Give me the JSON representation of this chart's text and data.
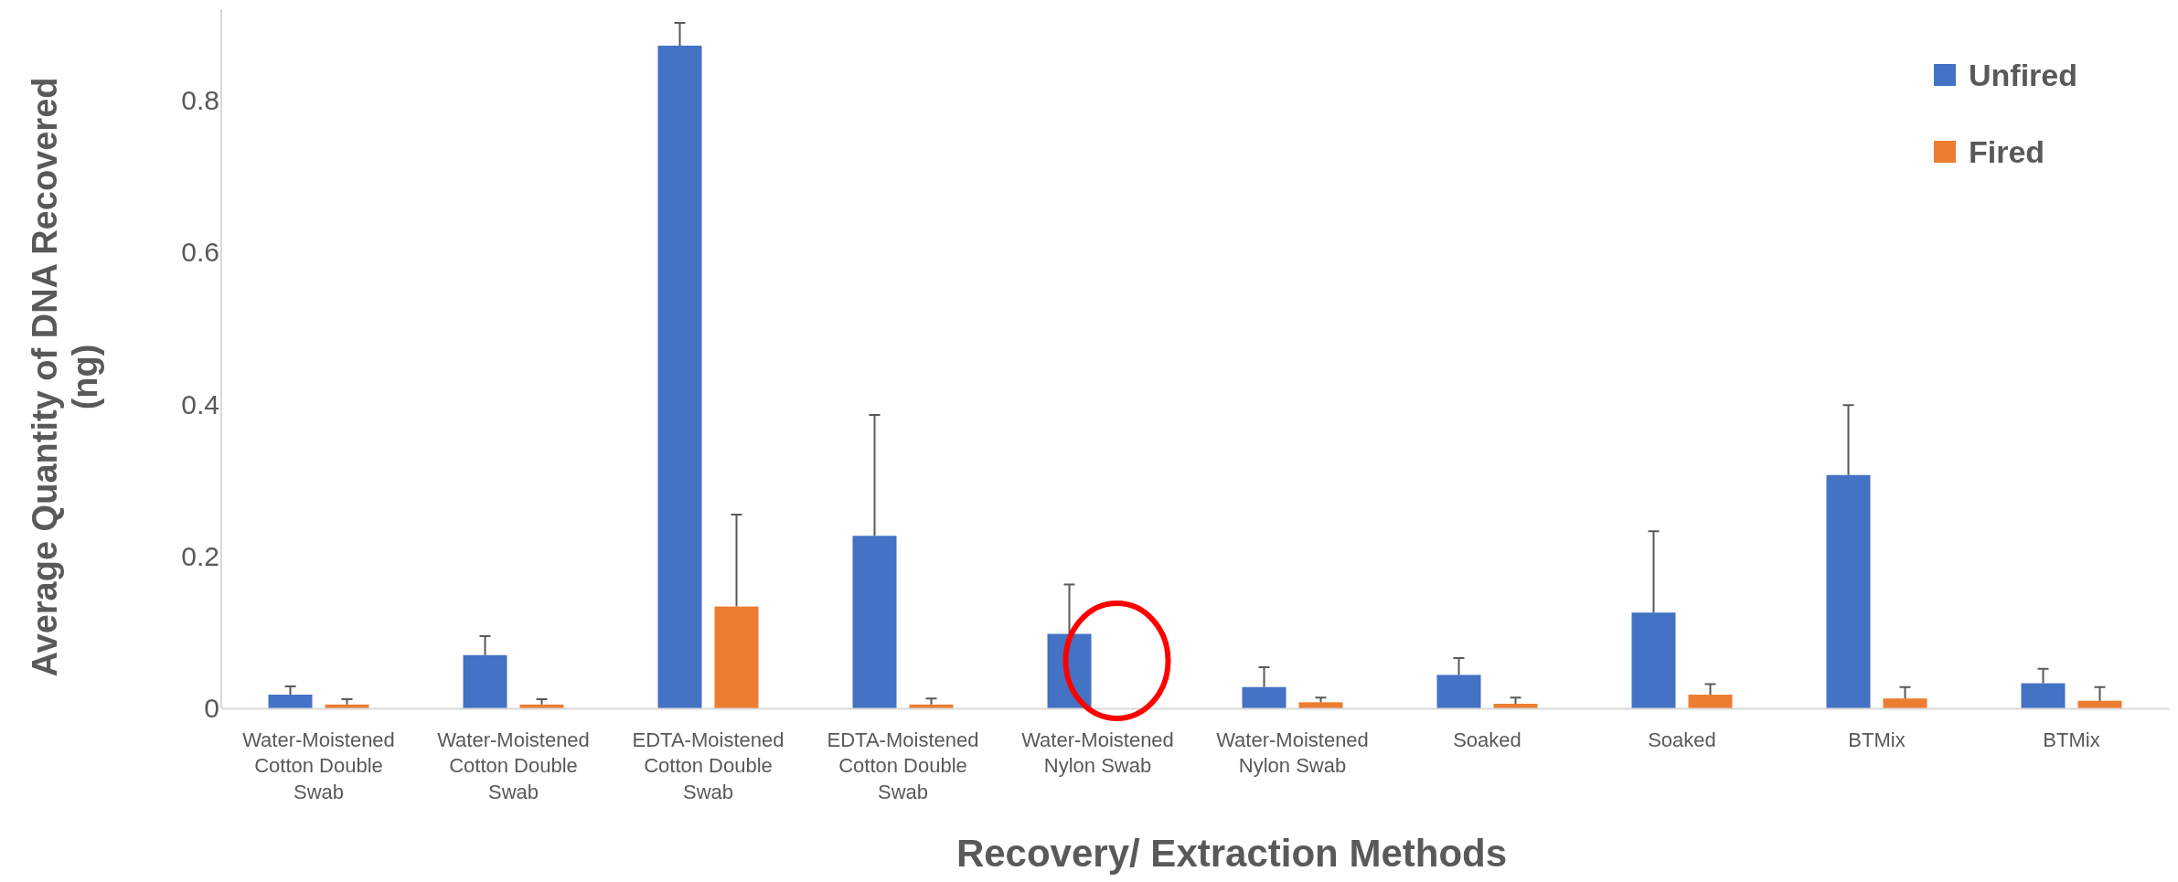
{
  "chart_data": {
    "type": "bar",
    "xlabel": "Recovery/ Extraction Methods",
    "ylabel": "Average Quantity of DNA Recovered (ng)",
    "categories": [
      "Water-Moistened Cotton Double Swab",
      "Water-Moistened Cotton Double Swab",
      "EDTA-Moistened Cotton Double Swab",
      "EDTA-Moistened Cotton Double Swab",
      "Water-Moistened Nylon Swab",
      "Water-Moistened Nylon Swab",
      "Soaked",
      "Soaked",
      "BTMix",
      "BTMix"
    ],
    "series": [
      {
        "name": "Unfired",
        "color": "#4472c4",
        "values": [
          0.018,
          0.07,
          0.872,
          0.227,
          0.098,
          0.028,
          0.044,
          0.126,
          0.307,
          0.033
        ],
        "errors": [
          [
            0.018,
            0.029
          ],
          [
            0.07,
            0.095
          ],
          [
            0.872,
            0.902
          ],
          [
            0.227,
            0.386
          ],
          [
            0.098,
            0.163
          ],
          [
            0.028,
            0.054
          ],
          [
            0.044,
            0.066
          ],
          [
            0.126,
            0.233
          ],
          [
            0.307,
            0.399
          ],
          [
            0.033,
            0.052
          ]
        ]
      },
      {
        "name": "Fired",
        "color": "#ed7d31",
        "values": [
          0.005,
          0.005,
          0.134,
          0.005,
          null,
          0.008,
          0.006,
          0.018,
          0.013,
          0.01
        ],
        "errors": [
          [
            0.005,
            0.012
          ],
          [
            0.005,
            0.012
          ],
          [
            0.134,
            0.255
          ],
          [
            0.005,
            0.013
          ],
          null,
          [
            0.008,
            0.014
          ],
          [
            0.006,
            0.014
          ],
          [
            0.018,
            0.032
          ],
          [
            0.013,
            0.028
          ],
          [
            0.01,
            0.028
          ]
        ]
      }
    ],
    "ylim": [
      0,
      0.92
    ],
    "yticks": [
      0,
      0.2,
      0.4,
      0.6,
      0.8
    ],
    "grid": false,
    "legend": "top right"
  }
}
